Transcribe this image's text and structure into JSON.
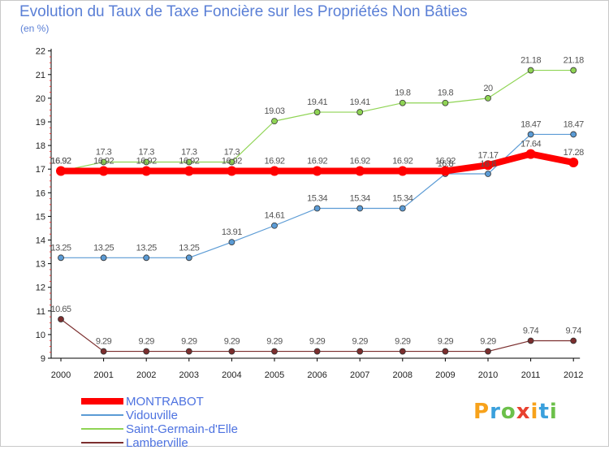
{
  "chart_data": {
    "type": "line",
    "title": "Evolution du Taux de Taxe Foncière sur les Propriétés Non Bâties",
    "unit_label": "(en %)",
    "xlabel": "",
    "ylabel": "",
    "categories": [
      "2000",
      "2001",
      "2002",
      "2003",
      "2004",
      "2005",
      "2006",
      "2007",
      "2008",
      "2009",
      "2010",
      "2011",
      "2012"
    ],
    "ylim": [
      9,
      22
    ],
    "yticks": [
      9,
      10,
      11,
      12,
      13,
      14,
      15,
      16,
      17,
      18,
      19,
      20,
      21,
      22
    ],
    "grid": false,
    "legend_position": "bottom-left",
    "series": [
      {
        "name": "Saint-Germain-d'Elle",
        "color": "#8fd454",
        "width": 1.2,
        "marker_r": 3.5,
        "values": [
          16.92,
          17.3,
          17.3,
          17.3,
          17.3,
          19.03,
          19.41,
          19.41,
          19.8,
          19.8,
          20,
          21.18,
          21.18
        ],
        "labels": [
          "16.92",
          "17.3",
          "17.3",
          "17.3",
          "17.3",
          "19.03",
          "19.41",
          "19.41",
          "19.8",
          "19.8",
          "20",
          "21.18",
          "21.18"
        ]
      },
      {
        "name": "Vidouville",
        "color": "#5b9bd5",
        "width": 1.2,
        "marker_r": 3.5,
        "values": [
          13.25,
          13.25,
          13.25,
          13.25,
          13.91,
          14.61,
          15.34,
          15.34,
          15.34,
          16.8,
          16.8,
          18.47,
          18.47
        ],
        "labels": [
          "13.25",
          "13.25",
          "13.25",
          "13.25",
          "13.91",
          "14.61",
          "15.34",
          "15.34",
          "15.34",
          "16.8",
          "16.8",
          "18.47",
          "18.47"
        ]
      },
      {
        "name": "Lamberville",
        "color": "#7b2e2e",
        "width": 1.2,
        "marker_r": 3.5,
        "values": [
          10.65,
          9.29,
          9.29,
          9.29,
          9.29,
          9.29,
          9.29,
          9.29,
          9.29,
          9.29,
          9.29,
          9.74,
          9.74
        ],
        "labels": [
          "10.65",
          "9.29",
          "9.29",
          "9.29",
          "9.29",
          "9.29",
          "9.29",
          "9.29",
          "9.29",
          "9.29",
          "9.29",
          "9.74",
          "9.74"
        ]
      },
      {
        "name": "MONTRABOT",
        "color": "#ff0000",
        "width": 8,
        "marker_r": 6,
        "values": [
          16.92,
          16.92,
          16.92,
          16.92,
          16.92,
          16.92,
          16.92,
          16.92,
          16.92,
          16.92,
          17.17,
          17.64,
          17.28
        ],
        "labels": [
          "16.92",
          "16.92",
          "16.92",
          "16.92",
          "16.92",
          "16.92",
          "16.92",
          "16.92",
          "16.92",
          "16.92",
          "17.17",
          "17.64",
          "17.28"
        ]
      }
    ],
    "legend_order": [
      "MONTRABOT",
      "Vidouville",
      "Saint-Germain-d'Elle",
      "Lamberville"
    ]
  },
  "logo": {
    "letters": [
      "P",
      "r",
      "o",
      "x",
      "i",
      "t",
      "i"
    ],
    "colors": [
      "#f7a21b",
      "#3aa0dc",
      "#6cc04a",
      "#e8412f",
      "#f7a21b",
      "#3aa0dc",
      "#6cc04a"
    ]
  }
}
